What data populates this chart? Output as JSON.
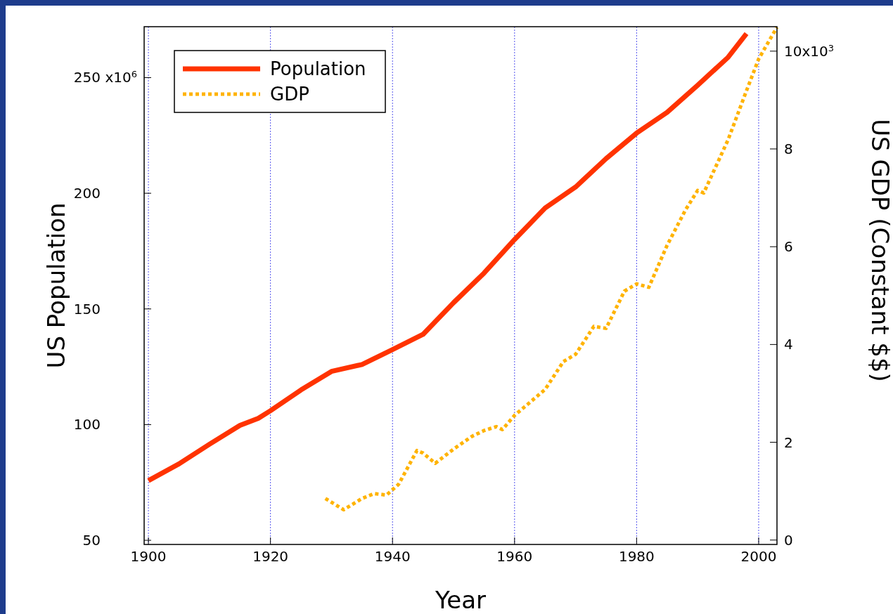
{
  "chart_data": {
    "type": "line",
    "xlabel": "Year",
    "ylabel": "US Population",
    "y2label": "US GDP (Constant $$)",
    "xlim": [
      1899.3,
      2003
    ],
    "xticks": [
      1900,
      1920,
      1940,
      1960,
      1980,
      2000
    ],
    "ylim": [
      48.2,
      272
    ],
    "yticks": [
      50,
      100,
      150,
      200,
      250
    ],
    "annotations": [
      "x10$^{6}$",
      "x10$^{3}$"
    ],
    "y2lim": [
      -0.09,
      10.5
    ],
    "y2ticks": [
      0,
      2,
      4,
      6,
      8,
      10
    ],
    "grid": "x",
    "legend": "top left",
    "series": [
      {
        "name": "Population",
        "color": "#ff3300",
        "line_style": "solid",
        "x": [
          1900,
          1905,
          1910,
          1915,
          1918,
          1920,
          1925,
          1930,
          1935,
          1940,
          1945,
          1950,
          1955,
          1960,
          1965,
          1970,
          1975,
          1980,
          1985,
          1990,
          1995,
          1998
        ],
        "values": [
          75.8,
          83,
          91.5,
          99.7,
          102.7,
          106,
          115,
          123,
          126,
          132.4,
          139,
          152.7,
          165.5,
          180,
          193.6,
          202.7,
          215,
          226,
          235,
          246.7,
          258.8,
          269
        ]
      },
      {
        "name": "GDP",
        "color": "#ffb300",
        "line_style": "dotted",
        "axis": "y2",
        "x": [
          1929,
          1932,
          1935,
          1937,
          1939,
          1941,
          1944,
          1945,
          1947,
          1950,
          1953,
          1955,
          1957,
          1958,
          1960,
          1965,
          1968,
          1970,
          1973,
          1975,
          1978,
          1980,
          1982,
          1985,
          1988,
          1990,
          1991,
          1995,
          1998,
          2000,
          2003
        ],
        "values": [
          0.85,
          0.62,
          0.85,
          0.95,
          0.92,
          1.14,
          1.83,
          1.78,
          1.57,
          1.86,
          2.12,
          2.24,
          2.32,
          2.26,
          2.55,
          3.08,
          3.65,
          3.8,
          4.37,
          4.33,
          5.09,
          5.24,
          5.17,
          6.03,
          6.75,
          7.15,
          7.1,
          8.19,
          9.19,
          9.84,
          10.49
        ]
      }
    ]
  }
}
